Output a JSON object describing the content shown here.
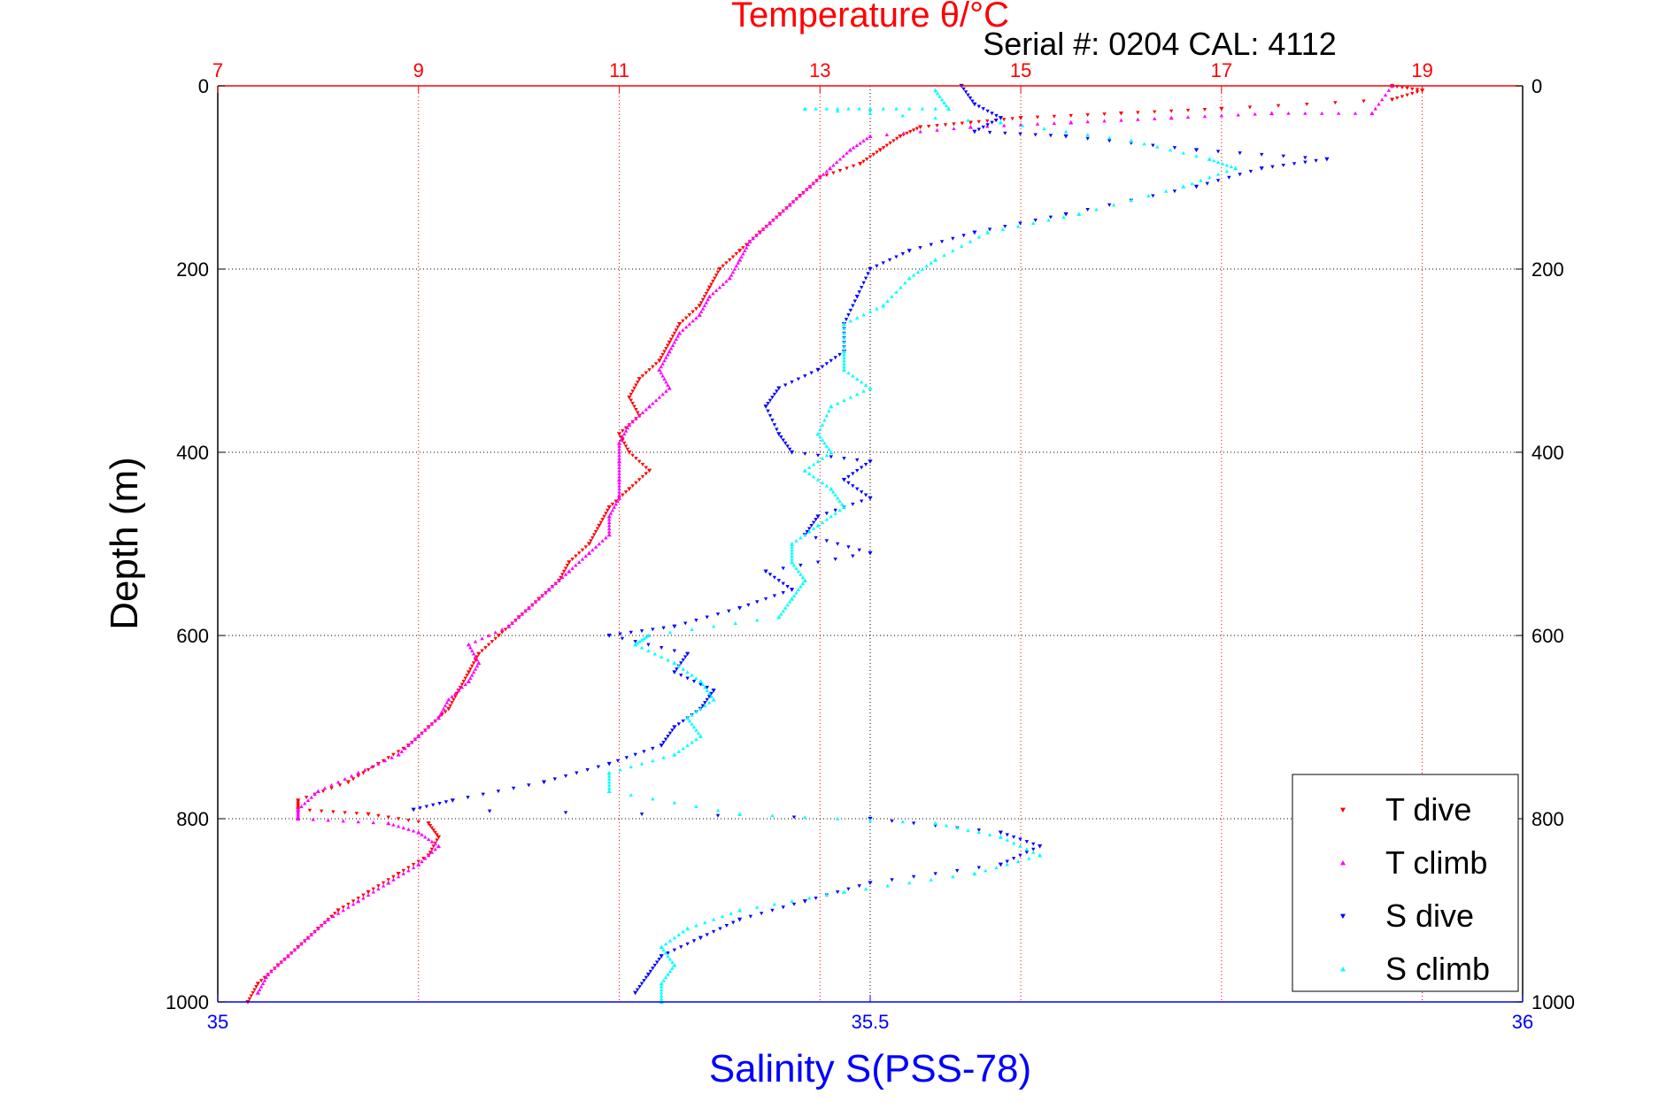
{
  "chart_data": {
    "type": "scatter",
    "title": "Temperature θ/°C",
    "annotation": "Serial #: 0204  CAL: 4112",
    "xlabel": "Salinity S(PSS-78)",
    "ylabel": "Depth (m)",
    "x_bottom": {
      "label": "Salinity S(PSS-78)",
      "lim": [
        35,
        36
      ],
      "ticks": [
        "35",
        "35.5",
        "36"
      ],
      "color": "#0000ff"
    },
    "x_top": {
      "label": "Temperature θ/°C",
      "lim": [
        7,
        20
      ],
      "ticks": [
        "7",
        "9",
        "11",
        "13",
        "15",
        "17",
        "19"
      ],
      "color": "#ff0000"
    },
    "y": {
      "lim": [
        0,
        1000
      ],
      "reversed": true,
      "ticks": [
        "0",
        "200",
        "400",
        "600",
        "800",
        "1000"
      ]
    },
    "grid": true,
    "legend_position": "bottom-right",
    "series": [
      {
        "name": "T dive",
        "axis": "temperature",
        "color": "#ff0000",
        "marker": "triangle-down",
        "points": [
          [
            18.7,
            0
          ],
          [
            19.0,
            5
          ],
          [
            18.7,
            15
          ],
          [
            17.0,
            25
          ],
          [
            16.0,
            30
          ],
          [
            15.0,
            35
          ],
          [
            14.5,
            40
          ],
          [
            14.0,
            45
          ],
          [
            13.8,
            55
          ],
          [
            13.6,
            70
          ],
          [
            13.4,
            85
          ],
          [
            13.0,
            100
          ],
          [
            12.8,
            120
          ],
          [
            12.6,
            140
          ],
          [
            12.4,
            160
          ],
          [
            12.2,
            180
          ],
          [
            12.0,
            200
          ],
          [
            11.9,
            220
          ],
          [
            11.8,
            240
          ],
          [
            11.6,
            260
          ],
          [
            11.5,
            280
          ],
          [
            11.4,
            300
          ],
          [
            11.2,
            320
          ],
          [
            11.1,
            340
          ],
          [
            11.2,
            360
          ],
          [
            11.0,
            380
          ],
          [
            11.1,
            400
          ],
          [
            11.3,
            420
          ],
          [
            11.1,
            440
          ],
          [
            10.9,
            460
          ],
          [
            10.8,
            480
          ],
          [
            10.7,
            500
          ],
          [
            10.5,
            520
          ],
          [
            10.4,
            540
          ],
          [
            10.2,
            560
          ],
          [
            10.0,
            580
          ],
          [
            9.8,
            600
          ],
          [
            9.6,
            620
          ],
          [
            9.5,
            640
          ],
          [
            9.4,
            660
          ],
          [
            9.3,
            680
          ],
          [
            9.1,
            700
          ],
          [
            8.9,
            720
          ],
          [
            8.6,
            740
          ],
          [
            8.3,
            760
          ],
          [
            7.8,
            780
          ],
          [
            7.8,
            790
          ],
          [
            8.5,
            795
          ],
          [
            9.1,
            805
          ],
          [
            9.2,
            820
          ],
          [
            9.1,
            840
          ],
          [
            8.8,
            860
          ],
          [
            8.5,
            880
          ],
          [
            8.2,
            900
          ],
          [
            8.0,
            920
          ],
          [
            7.8,
            940
          ],
          [
            7.6,
            960
          ],
          [
            7.4,
            980
          ],
          [
            7.3,
            1000
          ]
        ]
      },
      {
        "name": "T climb",
        "axis": "temperature",
        "color": "#ff00ff",
        "marker": "triangle-up",
        "points": [
          [
            18.7,
            0
          ],
          [
            18.5,
            30
          ],
          [
            17.5,
            30
          ],
          [
            16.5,
            35
          ],
          [
            15.5,
            40
          ],
          [
            14.5,
            45
          ],
          [
            13.5,
            55
          ],
          [
            13.3,
            70
          ],
          [
            13.1,
            90
          ],
          [
            12.9,
            110
          ],
          [
            12.7,
            130
          ],
          [
            12.5,
            150
          ],
          [
            12.3,
            170
          ],
          [
            12.2,
            190
          ],
          [
            12.1,
            210
          ],
          [
            11.9,
            230
          ],
          [
            11.8,
            250
          ],
          [
            11.6,
            270
          ],
          [
            11.5,
            290
          ],
          [
            11.4,
            310
          ],
          [
            11.5,
            330
          ],
          [
            11.3,
            350
          ],
          [
            11.1,
            370
          ],
          [
            11.0,
            390
          ],
          [
            11.0,
            410
          ],
          [
            11.0,
            430
          ],
          [
            11.0,
            450
          ],
          [
            10.9,
            470
          ],
          [
            10.9,
            490
          ],
          [
            10.7,
            510
          ],
          [
            10.5,
            530
          ],
          [
            10.3,
            550
          ],
          [
            10.1,
            570
          ],
          [
            9.9,
            590
          ],
          [
            9.5,
            610
          ],
          [
            9.6,
            630
          ],
          [
            9.5,
            650
          ],
          [
            9.3,
            670
          ],
          [
            9.2,
            690
          ],
          [
            9.0,
            710
          ],
          [
            8.8,
            730
          ],
          [
            8.4,
            750
          ],
          [
            8.0,
            770
          ],
          [
            7.8,
            790
          ],
          [
            7.8,
            800
          ],
          [
            8.7,
            805
          ],
          [
            9.0,
            815
          ],
          [
            9.2,
            830
          ],
          [
            9.0,
            850
          ],
          [
            8.7,
            870
          ],
          [
            8.4,
            890
          ],
          [
            8.1,
            910
          ],
          [
            7.9,
            930
          ],
          [
            7.7,
            950
          ],
          [
            7.5,
            970
          ],
          [
            7.4,
            990
          ]
        ]
      },
      {
        "name": "S dive",
        "axis": "salinity",
        "color": "#0000ff",
        "marker": "triangle-down",
        "points": [
          [
            35.57,
            0
          ],
          [
            35.58,
            20
          ],
          [
            35.6,
            35
          ],
          [
            35.58,
            50
          ],
          [
            35.65,
            55
          ],
          [
            35.75,
            70
          ],
          [
            35.85,
            80
          ],
          [
            35.8,
            90
          ],
          [
            35.75,
            110
          ],
          [
            35.65,
            140
          ],
          [
            35.58,
            160
          ],
          [
            35.53,
            180
          ],
          [
            35.5,
            200
          ],
          [
            35.49,
            230
          ],
          [
            35.48,
            260
          ],
          [
            35.48,
            290
          ],
          [
            35.46,
            310
          ],
          [
            35.43,
            330
          ],
          [
            35.42,
            350
          ],
          [
            35.43,
            380
          ],
          [
            35.44,
            400
          ],
          [
            35.5,
            410
          ],
          [
            35.48,
            430
          ],
          [
            35.5,
            450
          ],
          [
            35.46,
            470
          ],
          [
            35.45,
            490
          ],
          [
            35.5,
            510
          ],
          [
            35.42,
            530
          ],
          [
            35.44,
            550
          ],
          [
            35.4,
            570
          ],
          [
            35.35,
            590
          ],
          [
            35.3,
            600
          ],
          [
            35.36,
            620
          ],
          [
            35.35,
            640
          ],
          [
            35.38,
            660
          ],
          [
            35.37,
            680
          ],
          [
            35.35,
            700
          ],
          [
            35.34,
            720
          ],
          [
            35.3,
            740
          ],
          [
            35.25,
            760
          ],
          [
            35.18,
            780
          ],
          [
            35.15,
            790
          ],
          [
            35.5,
            800
          ],
          [
            35.6,
            815
          ],
          [
            35.63,
            830
          ],
          [
            35.6,
            850
          ],
          [
            35.5,
            870
          ],
          [
            35.45,
            890
          ],
          [
            35.4,
            910
          ],
          [
            35.37,
            930
          ],
          [
            35.34,
            950
          ],
          [
            35.33,
            970
          ],
          [
            35.32,
            990
          ]
        ]
      },
      {
        "name": "S climb",
        "axis": "salinity",
        "color": "#00ffff",
        "marker": "triangle-up",
        "points": [
          [
            35.55,
            5
          ],
          [
            35.56,
            25
          ],
          [
            35.5,
            25
          ],
          [
            35.45,
            25
          ],
          [
            35.6,
            40
          ],
          [
            35.7,
            60
          ],
          [
            35.76,
            80
          ],
          [
            35.78,
            90
          ],
          [
            35.74,
            110
          ],
          [
            35.66,
            140
          ],
          [
            35.59,
            160
          ],
          [
            35.55,
            190
          ],
          [
            35.53,
            210
          ],
          [
            35.51,
            240
          ],
          [
            35.48,
            260
          ],
          [
            35.48,
            290
          ],
          [
            35.48,
            310
          ],
          [
            35.5,
            330
          ],
          [
            35.47,
            350
          ],
          [
            35.46,
            380
          ],
          [
            35.47,
            400
          ],
          [
            35.45,
            420
          ],
          [
            35.47,
            440
          ],
          [
            35.48,
            460
          ],
          [
            35.46,
            480
          ],
          [
            35.44,
            500
          ],
          [
            35.44,
            520
          ],
          [
            35.45,
            540
          ],
          [
            35.44,
            560
          ],
          [
            35.43,
            580
          ],
          [
            35.33,
            600
          ],
          [
            35.32,
            610
          ],
          [
            35.35,
            630
          ],
          [
            35.37,
            650
          ],
          [
            35.38,
            670
          ],
          [
            35.36,
            690
          ],
          [
            35.37,
            710
          ],
          [
            35.35,
            730
          ],
          [
            35.3,
            750
          ],
          [
            35.3,
            770
          ],
          [
            35.4,
            795
          ],
          [
            35.55,
            805
          ],
          [
            35.6,
            820
          ],
          [
            35.63,
            840
          ],
          [
            35.58,
            860
          ],
          [
            35.48,
            880
          ],
          [
            35.4,
            900
          ],
          [
            35.36,
            920
          ],
          [
            35.34,
            940
          ],
          [
            35.35,
            960
          ],
          [
            35.34,
            980
          ],
          [
            35.34,
            1000
          ]
        ]
      }
    ]
  }
}
